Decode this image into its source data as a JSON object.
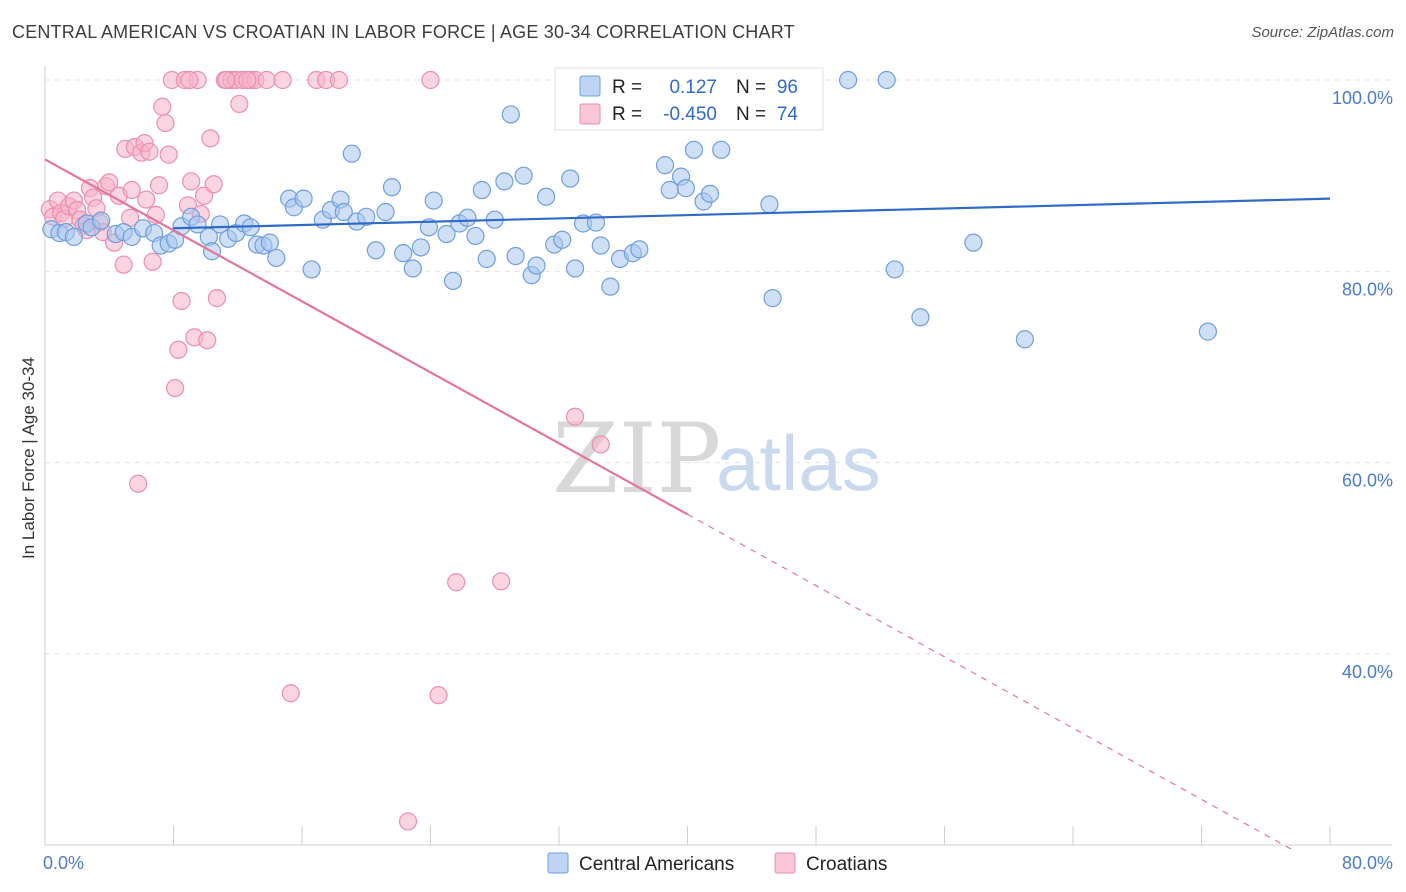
{
  "title": "CENTRAL AMERICAN VS CROATIAN IN LABOR FORCE | AGE 30-34 CORRELATION CHART",
  "source": "Source: ZipAtlas.com",
  "watermark": {
    "zip": "ZIP",
    "atlas": "atlas"
  },
  "colors": {
    "blue_fill": "#a8c6ee",
    "blue_stroke": "#6f9fdc",
    "blue_line": "#2f6ac8",
    "pink_fill": "#f6b3c8",
    "pink_stroke": "#ea8fae",
    "pink_line": "#e5769b",
    "grid": "#e3e3e3",
    "tick_text": "#4a7cc9"
  },
  "legend": {
    "rows": [
      {
        "r_label": "R =",
        "r_value": "0.127",
        "n_label": "N =",
        "n_value": "96"
      },
      {
        "r_label": "R =",
        "r_value": "-0.450",
        "n_label": "N =",
        "n_value": "74"
      }
    ]
  },
  "chart_data": {
    "type": "scatter",
    "title": "CENTRAL AMERICAN VS CROATIAN IN LABOR FORCE | AGE 30-34 CORRELATION CHART",
    "xlabel": "",
    "ylabel": "In Labor Force | Age 30-34",
    "xlim": [
      0,
      80
    ],
    "ylim": [
      20,
      102
    ],
    "x_tick_labels": [
      "0.0%",
      "80.0%"
    ],
    "y_ticks": [
      40,
      60,
      80,
      100
    ],
    "y_tick_labels": [
      "40.0%",
      "60.0%",
      "80.0%",
      "100.0%"
    ],
    "grid": true,
    "legend_placement": "top-center",
    "series": [
      {
        "name": "Central Americans",
        "color": "#a8c6ee",
        "trend": {
          "x": [
            8,
            80
          ],
          "y": [
            84.5,
            87.6
          ],
          "dashed_from": null
        },
        "points": [
          [
            0.4,
            84.4
          ],
          [
            0.9,
            84.0
          ],
          [
            1.3,
            84.1
          ],
          [
            1.8,
            83.6
          ],
          [
            2.6,
            85.0
          ],
          [
            2.9,
            84.6
          ],
          [
            3.5,
            85.3
          ],
          [
            4.4,
            83.9
          ],
          [
            4.9,
            84.1
          ],
          [
            5.4,
            83.6
          ],
          [
            6.1,
            84.5
          ],
          [
            6.8,
            84.0
          ],
          [
            7.2,
            82.7
          ],
          [
            7.7,
            82.9
          ],
          [
            8.1,
            83.3
          ],
          [
            8.5,
            84.7
          ],
          [
            9.1,
            85.7
          ],
          [
            9.5,
            84.9
          ],
          [
            10.2,
            83.6
          ],
          [
            10.4,
            82.1
          ],
          [
            10.9,
            84.9
          ],
          [
            11.4,
            83.4
          ],
          [
            11.9,
            84.0
          ],
          [
            12.4,
            85.0
          ],
          [
            12.8,
            84.6
          ],
          [
            13.2,
            82.8
          ],
          [
            13.6,
            82.7
          ],
          [
            14.0,
            83.0
          ],
          [
            14.4,
            81.4
          ],
          [
            15.2,
            87.6
          ],
          [
            15.5,
            86.7
          ],
          [
            16.1,
            87.6
          ],
          [
            16.6,
            80.2
          ],
          [
            17.3,
            85.4
          ],
          [
            17.8,
            86.4
          ],
          [
            18.4,
            87.5
          ],
          [
            18.6,
            86.2
          ],
          [
            19.1,
            92.3
          ],
          [
            19.4,
            85.2
          ],
          [
            20.0,
            85.7
          ],
          [
            20.6,
            82.2
          ],
          [
            21.2,
            86.2
          ],
          [
            21.6,
            88.8
          ],
          [
            22.3,
            81.9
          ],
          [
            22.9,
            80.3
          ],
          [
            23.4,
            82.5
          ],
          [
            23.9,
            84.6
          ],
          [
            24.2,
            87.4
          ],
          [
            25.0,
            83.9
          ],
          [
            25.4,
            79.0
          ],
          [
            25.8,
            85.0
          ],
          [
            26.3,
            85.6
          ],
          [
            26.8,
            83.7
          ],
          [
            27.2,
            88.5
          ],
          [
            27.5,
            81.3
          ],
          [
            28.0,
            85.4
          ],
          [
            28.6,
            89.4
          ],
          [
            29.3,
            81.6
          ],
          [
            29.8,
            90.0
          ],
          [
            30.3,
            79.6
          ],
          [
            30.6,
            80.6
          ],
          [
            31.2,
            87.8
          ],
          [
            31.7,
            82.8
          ],
          [
            32.2,
            83.3
          ],
          [
            32.7,
            89.7
          ],
          [
            33.0,
            80.3
          ],
          [
            33.5,
            85.0
          ],
          [
            34.3,
            85.1
          ],
          [
            34.6,
            82.7
          ],
          [
            35.2,
            78.4
          ],
          [
            35.8,
            81.3
          ],
          [
            36.6,
            81.9
          ],
          [
            37.0,
            82.3
          ],
          [
            38.6,
            91.1
          ],
          [
            38.9,
            88.5
          ],
          [
            39.6,
            89.9
          ],
          [
            39.9,
            88.7
          ],
          [
            40.4,
            92.7
          ],
          [
            41.0,
            87.3
          ],
          [
            41.4,
            88.1
          ],
          [
            42.1,
            92.7
          ],
          [
            43.4,
            100.0
          ],
          [
            45.1,
            87.0
          ],
          [
            45.3,
            77.2
          ],
          [
            47.6,
            100.0
          ],
          [
            52.4,
            100.0
          ],
          [
            52.9,
            80.2
          ],
          [
            54.5,
            75.2
          ],
          [
            57.8,
            83.0
          ],
          [
            61.0,
            72.9
          ],
          [
            72.4,
            73.7
          ],
          [
            34.9,
            100.0
          ],
          [
            42.0,
            100.0
          ],
          [
            29.0,
            96.4
          ],
          [
            46.6,
            96.8
          ],
          [
            50.0,
            100.0
          ]
        ]
      },
      {
        "name": "Croatians",
        "color": "#f6b3c8",
        "trend": {
          "x": [
            0,
            40
          ],
          "y": [
            91.7,
            54.6
          ],
          "dashed_to": [
            77.8,
            19.4
          ]
        },
        "points": [
          [
            0.3,
            86.5
          ],
          [
            0.5,
            85.7
          ],
          [
            0.8,
            87.4
          ],
          [
            1.0,
            86.1
          ],
          [
            1.2,
            85.5
          ],
          [
            1.5,
            86.8
          ],
          [
            1.8,
            87.4
          ],
          [
            2.0,
            86.4
          ],
          [
            2.2,
            85.4
          ],
          [
            2.4,
            84.8
          ],
          [
            2.6,
            84.3
          ],
          [
            2.8,
            88.7
          ],
          [
            3.0,
            87.7
          ],
          [
            3.2,
            86.6
          ],
          [
            3.4,
            85.1
          ],
          [
            3.6,
            84.1
          ],
          [
            3.8,
            88.9
          ],
          [
            4.0,
            89.3
          ],
          [
            4.3,
            83.0
          ],
          [
            4.6,
            87.9
          ],
          [
            4.9,
            80.7
          ],
          [
            5.0,
            92.8
          ],
          [
            5.3,
            85.6
          ],
          [
            5.4,
            88.5
          ],
          [
            5.6,
            93.0
          ],
          [
            5.8,
            57.8
          ],
          [
            6.0,
            92.4
          ],
          [
            6.2,
            93.4
          ],
          [
            6.3,
            87.5
          ],
          [
            6.5,
            92.5
          ],
          [
            6.7,
            81.0
          ],
          [
            6.9,
            85.9
          ],
          [
            7.1,
            89.0
          ],
          [
            7.3,
            97.2
          ],
          [
            7.5,
            95.5
          ],
          [
            7.7,
            92.2
          ],
          [
            7.9,
            100.0
          ],
          [
            8.1,
            67.8
          ],
          [
            8.3,
            71.8
          ],
          [
            8.5,
            76.9
          ],
          [
            8.7,
            100.0
          ],
          [
            8.9,
            86.9
          ],
          [
            9.1,
            89.4
          ],
          [
            9.3,
            73.1
          ],
          [
            9.5,
            100.0
          ],
          [
            9.7,
            86.0
          ],
          [
            9.9,
            87.9
          ],
          [
            10.1,
            72.8
          ],
          [
            10.3,
            93.9
          ],
          [
            10.5,
            89.1
          ],
          [
            10.7,
            77.2
          ],
          [
            11.2,
            100.0
          ],
          [
            11.6,
            100.0
          ],
          [
            11.9,
            100.0
          ],
          [
            12.1,
            97.5
          ],
          [
            12.3,
            100.0
          ],
          [
            12.8,
            100.0
          ],
          [
            13.1,
            100.0
          ],
          [
            13.8,
            100.0
          ],
          [
            14.8,
            100.0
          ],
          [
            15.3,
            35.9
          ],
          [
            16.9,
            100.0
          ],
          [
            17.5,
            100.0
          ],
          [
            18.3,
            100.0
          ],
          [
            22.6,
            22.5
          ],
          [
            24.0,
            100.0
          ],
          [
            24.5,
            35.7
          ],
          [
            25.6,
            47.5
          ],
          [
            28.4,
            47.6
          ],
          [
            33.0,
            64.8
          ],
          [
            34.6,
            61.9
          ],
          [
            9.0,
            100.0
          ],
          [
            12.6,
            100.0
          ],
          [
            11.3,
            100.0
          ]
        ]
      }
    ]
  }
}
